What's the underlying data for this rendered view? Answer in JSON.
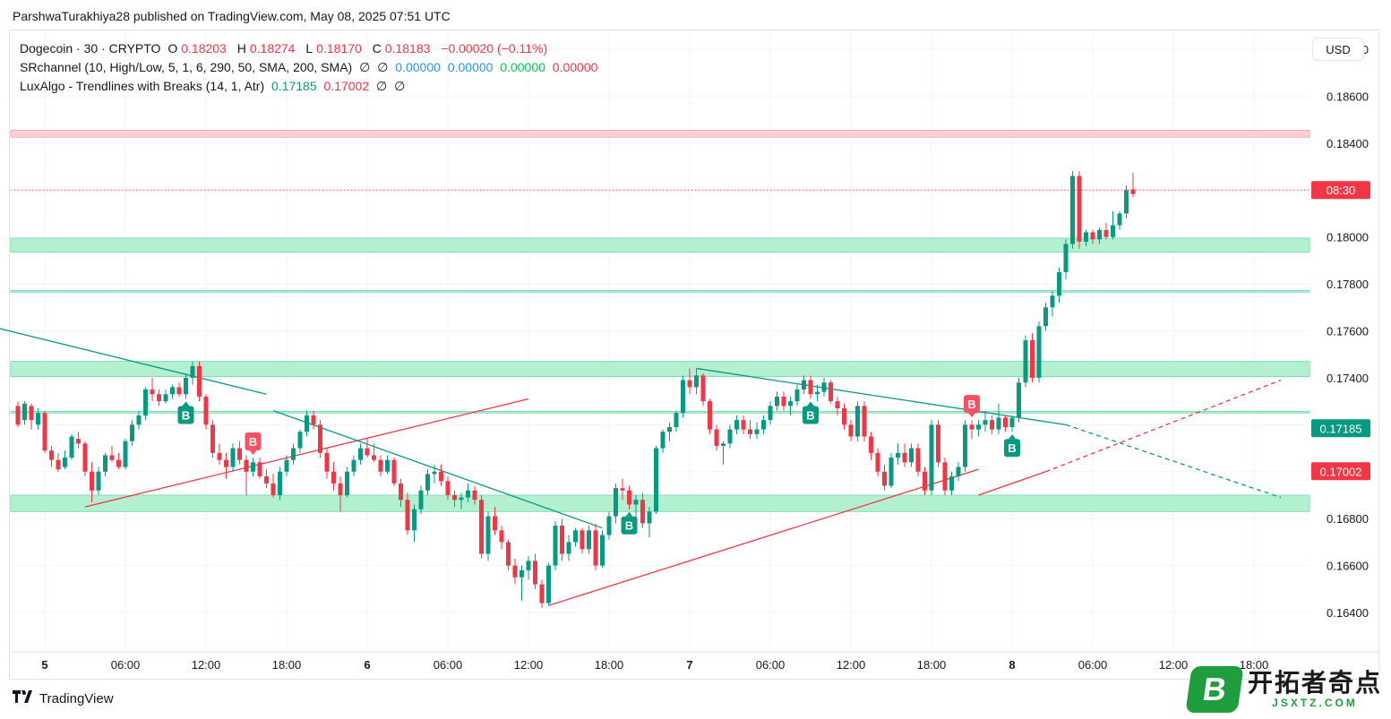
{
  "header": {
    "publish_line": "ParshwaTurakhiya28 published on TradingView.com, May 08, 2025 07:51 UTC"
  },
  "legend": {
    "symbol": "Dogecoin · 30 · CRYPTO",
    "ohlc": [
      {
        "k": "O",
        "v": "0.18203"
      },
      {
        "k": "H",
        "v": "0.18274"
      },
      {
        "k": "L",
        "v": "0.18170"
      },
      {
        "k": "C",
        "v": "0.18183"
      }
    ],
    "change": "−0.00020 (−0.11%)",
    "sr": {
      "name": "SRchannel (10, High/Low, 5, 1, 6, 290, 50, SMA, 200, SMA)",
      "null1": "∅",
      "null2": "∅",
      "v1": "0.00000",
      "v2": "0.00000",
      "v3": "0.00000",
      "v4": "0.00000"
    },
    "lux": {
      "name": "LuxAlgo - Trendlines with Breaks (14, 1, Atr)",
      "v1": "0.17185",
      "v2": "0.17002",
      "null1": "∅",
      "null2": "∅"
    }
  },
  "currency": "USD",
  "footer": {
    "brand": "TradingView"
  },
  "watermark": {
    "glyph": "B",
    "cn": "开拓者奇点",
    "url": "JSXTZ.COM"
  },
  "colors": {
    "up": "#089981",
    "down": "#f23645",
    "zone": "#b2f0d0",
    "resistance": "#ffd0d4"
  },
  "chart_data": {
    "type": "candlestick",
    "ylim": [
      0.1624,
      0.1888
    ],
    "y_ticks": [
      "0.16400",
      "0.16600",
      "0.16800",
      "0.17000",
      "0.17200",
      "0.17400",
      "0.17600",
      "0.17800",
      "0.18000",
      "0.18200",
      "0.18400",
      "0.18600",
      "0.18800"
    ],
    "x_ticks": [
      {
        "label": "5",
        "t": 4
      },
      {
        "label": "06:00",
        "t": 16
      },
      {
        "label": "12:00",
        "t": 28
      },
      {
        "label": "18:00",
        "t": 40
      },
      {
        "label": "6",
        "t": 52
      },
      {
        "label": "06:00",
        "t": 64
      },
      {
        "label": "12:00",
        "t": 76
      },
      {
        "label": "18:00",
        "t": 88
      },
      {
        "label": "7",
        "t": 100
      },
      {
        "label": "06:00",
        "t": 112
      },
      {
        "label": "12:00",
        "t": 124
      },
      {
        "label": "18:00",
        "t": 136
      },
      {
        "label": "8",
        "t": 148
      },
      {
        "label": "06:00",
        "t": 160
      },
      {
        "label": "12:00",
        "t": 172
      },
      {
        "label": "18:00",
        "t": 184
      }
    ],
    "price_labels": [
      {
        "text": "08:30",
        "price": 0.182,
        "color": "#f23645"
      },
      {
        "text": "0.17185",
        "price": 0.17185,
        "color": "#089981"
      },
      {
        "text": "0.17002",
        "price": 0.17002,
        "color": "#f23645"
      }
    ],
    "zones": [
      {
        "from": 0.18425,
        "to": 0.18455,
        "kind": "resistance"
      },
      {
        "from": 0.17935,
        "to": 0.17995,
        "kind": "support"
      },
      {
        "from": 0.17765,
        "to": 0.17772,
        "kind": "support"
      },
      {
        "from": 0.17405,
        "to": 0.1747,
        "kind": "support"
      },
      {
        "from": 0.1725,
        "to": 0.17257,
        "kind": "support"
      },
      {
        "from": 0.1683,
        "to": 0.169,
        "kind": "support"
      }
    ],
    "trendlines": [
      {
        "t1": -7,
        "p1": 0.1794,
        "t2": -5,
        "p2": 0.18,
        "color": "#f23645",
        "dash": false
      },
      {
        "t1": -7,
        "p1": 0.1764,
        "t2": 37,
        "p2": 0.1733,
        "color": "#089981",
        "dash": false
      },
      {
        "t1": 10,
        "p1": 0.1685,
        "t2": 76,
        "p2": 0.1731,
        "color": "#f23645",
        "dash": false
      },
      {
        "t1": 38,
        "p1": 0.1726,
        "t2": 87,
        "p2": 0.1676,
        "color": "#089981",
        "dash": false
      },
      {
        "t1": 79,
        "p1": 0.1643,
        "t2": 143,
        "p2": 0.1701,
        "color": "#f23645",
        "dash": false
      },
      {
        "t1": 101,
        "p1": 0.1744,
        "t2": 156,
        "p2": 0.172,
        "color": "#089981",
        "dash": false
      },
      {
        "t1": 143,
        "p1": 0.169,
        "t2": 153,
        "p2": 0.17,
        "color": "#f23645",
        "dash": false
      },
      {
        "t1": 156,
        "p1": 0.172,
        "t2": 188,
        "p2": 0.1689,
        "color": "#089981",
        "dash": true
      },
      {
        "t1": 153,
        "p1": 0.17,
        "t2": 188,
        "p2": 0.1739,
        "color": "#f23645",
        "dash": true
      }
    ],
    "break_markers": [
      {
        "t": 25,
        "label": "B",
        "kind": "up"
      },
      {
        "t": 35,
        "label": "B",
        "kind": "down"
      },
      {
        "t": 91,
        "label": "B",
        "kind": "up"
      },
      {
        "t": 118,
        "label": "B",
        "kind": "up"
      },
      {
        "t": 142,
        "label": "B",
        "kind": "down"
      },
      {
        "t": 148,
        "label": "B",
        "kind": "up"
      }
    ],
    "last_price_line": 0.182,
    "candles": [
      [
        0.1728,
        0.173,
        0.1719,
        0.172
      ],
      [
        0.1722,
        0.173,
        0.172,
        0.1729
      ],
      [
        0.1728,
        0.1729,
        0.1718,
        0.1722
      ],
      [
        0.172,
        0.1727,
        0.1718,
        0.1725
      ],
      [
        0.1725,
        0.1726,
        0.1708,
        0.1709
      ],
      [
        0.1709,
        0.1711,
        0.1702,
        0.1705
      ],
      [
        0.1705,
        0.1708,
        0.17,
        0.1701
      ],
      [
        0.1702,
        0.1709,
        0.1701,
        0.1706
      ],
      [
        0.1706,
        0.1716,
        0.1705,
        0.1715
      ],
      [
        0.1714,
        0.1717,
        0.171,
        0.1712
      ],
      [
        0.1712,
        0.1713,
        0.1698,
        0.17
      ],
      [
        0.17,
        0.1704,
        0.1687,
        0.1692
      ],
      [
        0.1692,
        0.1702,
        0.169,
        0.17
      ],
      [
        0.17,
        0.1708,
        0.1698,
        0.1707
      ],
      [
        0.1707,
        0.1711,
        0.1704,
        0.1705
      ],
      [
        0.1705,
        0.1708,
        0.1701,
        0.1702
      ],
      [
        0.1702,
        0.1714,
        0.1701,
        0.1713
      ],
      [
        0.1713,
        0.1722,
        0.1711,
        0.172
      ],
      [
        0.172,
        0.1726,
        0.1718,
        0.1724
      ],
      [
        0.1724,
        0.1736,
        0.1722,
        0.1735
      ],
      [
        0.1735,
        0.174,
        0.173,
        0.1733
      ],
      [
        0.1733,
        0.1735,
        0.1728,
        0.173
      ],
      [
        0.173,
        0.1735,
        0.1729,
        0.1733
      ],
      [
        0.1733,
        0.1737,
        0.1731,
        0.1736
      ],
      [
        0.1736,
        0.1738,
        0.1732,
        0.1733
      ],
      [
        0.1733,
        0.1742,
        0.1731,
        0.174
      ],
      [
        0.174,
        0.1747,
        0.1737,
        0.1745
      ],
      [
        0.1745,
        0.1747,
        0.173,
        0.1732
      ],
      [
        0.1732,
        0.1733,
        0.1718,
        0.172
      ],
      [
        0.172,
        0.1722,
        0.1706,
        0.1708
      ],
      [
        0.1708,
        0.1712,
        0.1703,
        0.1705
      ],
      [
        0.1705,
        0.1708,
        0.1697,
        0.1702
      ],
      [
        0.1702,
        0.1712,
        0.17,
        0.171
      ],
      [
        0.171,
        0.1713,
        0.1703,
        0.1705
      ],
      [
        0.1705,
        0.1707,
        0.169,
        0.17
      ],
      [
        0.17,
        0.1706,
        0.1698,
        0.1704
      ],
      [
        0.1704,
        0.1706,
        0.1697,
        0.1698
      ],
      [
        0.1698,
        0.1701,
        0.1693,
        0.1695
      ],
      [
        0.1695,
        0.1699,
        0.1689,
        0.169
      ],
      [
        0.169,
        0.1702,
        0.1688,
        0.17
      ],
      [
        0.17,
        0.1707,
        0.1698,
        0.1705
      ],
      [
        0.1705,
        0.1712,
        0.1703,
        0.171
      ],
      [
        0.171,
        0.1718,
        0.1708,
        0.1717
      ],
      [
        0.1717,
        0.1726,
        0.1715,
        0.1724
      ],
      [
        0.1724,
        0.1726,
        0.1718,
        0.172
      ],
      [
        0.172,
        0.1722,
        0.1706,
        0.1708
      ],
      [
        0.1708,
        0.171,
        0.1697,
        0.17
      ],
      [
        0.17,
        0.1704,
        0.1692,
        0.1695
      ],
      [
        0.1695,
        0.1698,
        0.1683,
        0.169
      ],
      [
        0.169,
        0.1702,
        0.1689,
        0.17
      ],
      [
        0.17,
        0.1707,
        0.1698,
        0.1705
      ],
      [
        0.1705,
        0.1712,
        0.1703,
        0.171
      ],
      [
        0.171,
        0.1714,
        0.1706,
        0.1707
      ],
      [
        0.1707,
        0.1712,
        0.1704,
        0.1705
      ],
      [
        0.1705,
        0.1707,
        0.1698,
        0.17
      ],
      [
        0.17,
        0.1707,
        0.1699,
        0.1705
      ],
      [
        0.1705,
        0.1706,
        0.1694,
        0.1695
      ],
      [
        0.1695,
        0.1697,
        0.1685,
        0.1688
      ],
      [
        0.1688,
        0.1691,
        0.1673,
        0.1675
      ],
      [
        0.1675,
        0.1686,
        0.167,
        0.1684
      ],
      [
        0.1684,
        0.1694,
        0.1682,
        0.1692
      ],
      [
        0.1692,
        0.1701,
        0.169,
        0.1699
      ],
      [
        0.1699,
        0.1703,
        0.1695,
        0.17
      ],
      [
        0.17,
        0.1703,
        0.1694,
        0.1696
      ],
      [
        0.1696,
        0.1698,
        0.1688,
        0.169
      ],
      [
        0.169,
        0.1692,
        0.1685,
        0.1688
      ],
      [
        0.1688,
        0.1691,
        0.1684,
        0.1689
      ],
      [
        0.1689,
        0.1695,
        0.1687,
        0.1692
      ],
      [
        0.1692,
        0.1694,
        0.1686,
        0.1688
      ],
      [
        0.1688,
        0.169,
        0.1663,
        0.1665
      ],
      [
        0.1665,
        0.1683,
        0.1662,
        0.1681
      ],
      [
        0.1681,
        0.1685,
        0.1673,
        0.1675
      ],
      [
        0.1675,
        0.1677,
        0.1667,
        0.167
      ],
      [
        0.167,
        0.1671,
        0.1658,
        0.166
      ],
      [
        0.166,
        0.1663,
        0.1652,
        0.1655
      ],
      [
        0.1655,
        0.166,
        0.1645,
        0.1658
      ],
      [
        0.1658,
        0.1664,
        0.1654,
        0.1662
      ],
      [
        0.1662,
        0.1665,
        0.165,
        0.1652
      ],
      [
        0.1652,
        0.1654,
        0.1642,
        0.1644
      ],
      [
        0.1644,
        0.1661,
        0.1643,
        0.166
      ],
      [
        0.166,
        0.1679,
        0.1658,
        0.1677
      ],
      [
        0.1677,
        0.168,
        0.1662,
        0.1665
      ],
      [
        0.1665,
        0.1673,
        0.1662,
        0.167
      ],
      [
        0.167,
        0.1676,
        0.1668,
        0.1675
      ],
      [
        0.1675,
        0.1676,
        0.1665,
        0.1667
      ],
      [
        0.1667,
        0.1677,
        0.1665,
        0.1675
      ],
      [
        0.1675,
        0.1678,
        0.1658,
        0.166
      ],
      [
        0.166,
        0.1675,
        0.1659,
        0.1673
      ],
      [
        0.1673,
        0.1683,
        0.1671,
        0.1681
      ],
      [
        0.1681,
        0.1695,
        0.1678,
        0.1693
      ],
      [
        0.1693,
        0.1697,
        0.1688,
        0.1692
      ],
      [
        0.1692,
        0.1694,
        0.1684,
        0.1686
      ],
      [
        0.1686,
        0.169,
        0.168,
        0.1688
      ],
      [
        0.1688,
        0.1691,
        0.1676,
        0.1678
      ],
      [
        0.1678,
        0.1685,
        0.1672,
        0.1683
      ],
      [
        0.1683,
        0.1711,
        0.1682,
        0.171
      ],
      [
        0.171,
        0.1718,
        0.1708,
        0.1717
      ],
      [
        0.1717,
        0.1721,
        0.1713,
        0.1719
      ],
      [
        0.1719,
        0.1726,
        0.1717,
        0.1725
      ],
      [
        0.1725,
        0.1741,
        0.1723,
        0.1739
      ],
      [
        0.1739,
        0.1744,
        0.1733,
        0.1736
      ],
      [
        0.1736,
        0.1744,
        0.1733,
        0.1741
      ],
      [
        0.1741,
        0.1742,
        0.1728,
        0.173
      ],
      [
        0.173,
        0.1731,
        0.1716,
        0.1718
      ],
      [
        0.1718,
        0.172,
        0.1709,
        0.1711
      ],
      [
        0.1711,
        0.1713,
        0.1703,
        0.1712
      ],
      [
        0.1712,
        0.172,
        0.171,
        0.1718
      ],
      [
        0.1718,
        0.1724,
        0.1716,
        0.1722
      ],
      [
        0.1722,
        0.1724,
        0.1716,
        0.1718
      ],
      [
        0.1718,
        0.1722,
        0.1714,
        0.1716
      ],
      [
        0.1716,
        0.1721,
        0.1714,
        0.1718
      ],
      [
        0.1718,
        0.1724,
        0.1716,
        0.1722
      ],
      [
        0.1722,
        0.173,
        0.172,
        0.1728
      ],
      [
        0.1728,
        0.1734,
        0.1726,
        0.1732
      ],
      [
        0.1732,
        0.1734,
        0.1726,
        0.1728
      ],
      [
        0.1728,
        0.1732,
        0.1724,
        0.173
      ],
      [
        0.173,
        0.1737,
        0.1728,
        0.1735
      ],
      [
        0.1735,
        0.1741,
        0.1733,
        0.1739
      ],
      [
        0.1739,
        0.1741,
        0.1731,
        0.1733
      ],
      [
        0.1733,
        0.1737,
        0.173,
        0.1734
      ],
      [
        0.1734,
        0.174,
        0.1732,
        0.1738
      ],
      [
        0.1738,
        0.1739,
        0.1729,
        0.173
      ],
      [
        0.173,
        0.1732,
        0.1724,
        0.1727
      ],
      [
        0.1727,
        0.1729,
        0.1718,
        0.172
      ],
      [
        0.172,
        0.1722,
        0.1713,
        0.1715
      ],
      [
        0.1715,
        0.173,
        0.1713,
        0.1728
      ],
      [
        0.1728,
        0.173,
        0.1713,
        0.1715
      ],
      [
        0.1715,
        0.1717,
        0.1705,
        0.1708
      ],
      [
        0.1708,
        0.171,
        0.1698,
        0.17
      ],
      [
        0.17,
        0.1703,
        0.1692,
        0.1694
      ],
      [
        0.1694,
        0.1708,
        0.1693,
        0.1706
      ],
      [
        0.1706,
        0.1712,
        0.1703,
        0.1708
      ],
      [
        0.1708,
        0.1712,
        0.1702,
        0.1704
      ],
      [
        0.1704,
        0.1712,
        0.1702,
        0.171
      ],
      [
        0.171,
        0.1712,
        0.1698,
        0.17
      ],
      [
        0.17,
        0.1702,
        0.169,
        0.1692
      ],
      [
        0.1692,
        0.1722,
        0.169,
        0.172
      ],
      [
        0.172,
        0.1722,
        0.1702,
        0.1704
      ],
      [
        0.1704,
        0.1706,
        0.169,
        0.1692
      ],
      [
        0.1692,
        0.17,
        0.169,
        0.1698
      ],
      [
        0.1698,
        0.1704,
        0.1696,
        0.1702
      ],
      [
        0.1702,
        0.1722,
        0.17,
        0.172
      ],
      [
        0.172,
        0.1722,
        0.1714,
        0.1718
      ],
      [
        0.1718,
        0.1722,
        0.1715,
        0.172
      ],
      [
        0.172,
        0.1726,
        0.1717,
        0.1722
      ],
      [
        0.1722,
        0.1724,
        0.1716,
        0.1718
      ],
      [
        0.1718,
        0.1729,
        0.1716,
        0.1723
      ],
      [
        0.1723,
        0.1724,
        0.1717,
        0.1719
      ],
      [
        0.1719,
        0.1724,
        0.1717,
        0.1723
      ],
      [
        0.1723,
        0.174,
        0.1721,
        0.1738
      ],
      [
        0.1738,
        0.1758,
        0.1736,
        0.1756
      ],
      [
        0.1756,
        0.1759,
        0.1738,
        0.174
      ],
      [
        0.174,
        0.1764,
        0.1738,
        0.1762
      ],
      [
        0.1762,
        0.1772,
        0.176,
        0.177
      ],
      [
        0.177,
        0.1777,
        0.1766,
        0.1775
      ],
      [
        0.1775,
        0.1787,
        0.1772,
        0.1785
      ],
      [
        0.1785,
        0.1799,
        0.1782,
        0.1797
      ],
      [
        0.1797,
        0.1828,
        0.1795,
        0.1826
      ],
      [
        0.1826,
        0.1828,
        0.1795,
        0.1798
      ],
      [
        0.1798,
        0.1803,
        0.1796,
        0.1802
      ],
      [
        0.1802,
        0.1803,
        0.1797,
        0.1799
      ],
      [
        0.1799,
        0.1804,
        0.1797,
        0.1803
      ],
      [
        0.1803,
        0.1806,
        0.1799,
        0.18
      ],
      [
        0.18,
        0.1811,
        0.1799,
        0.1805
      ],
      [
        0.1805,
        0.1811,
        0.1803,
        0.181
      ],
      [
        0.181,
        0.1822,
        0.1808,
        0.182
      ],
      [
        0.18203,
        0.18274,
        0.1817,
        0.18183
      ]
    ]
  }
}
